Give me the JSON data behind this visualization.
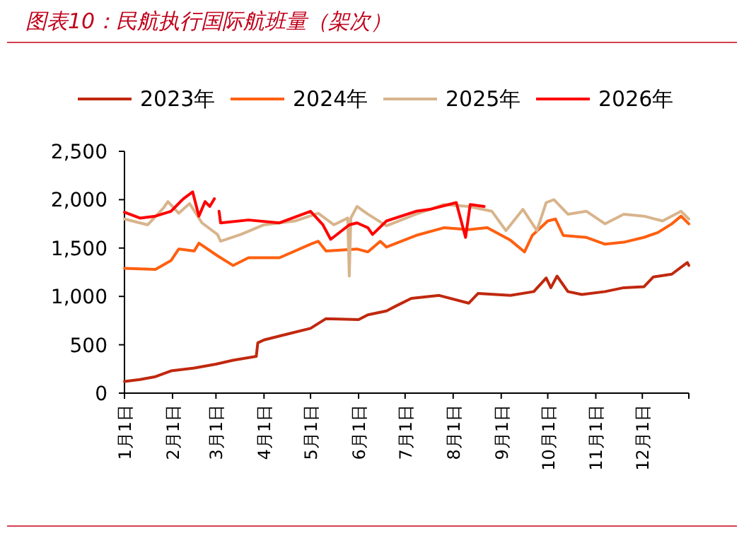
{
  "chart_data": {
    "type": "line",
    "title": "图表10：民航执行国际航班量（架次）",
    "legend": "top",
    "grid": false,
    "line_style": "solid",
    "marker": "none",
    "xlim": [
      "--01-01",
      "--12-31"
    ],
    "xticks": [
      {
        "value": "--01-01",
        "label": "1月1日"
      },
      {
        "value": "--02-01",
        "label": "2月1日"
      },
      {
        "value": "--03-01",
        "label": "3月1日"
      },
      {
        "value": "--04-01",
        "label": "4月1日"
      },
      {
        "value": "--05-01",
        "label": "5月1日"
      },
      {
        "value": "--06-01",
        "label": "6月1日"
      },
      {
        "value": "--07-01",
        "label": "7月1日"
      },
      {
        "value": "--08-01",
        "label": "8月1日"
      },
      {
        "value": "--09-01",
        "label": "9月1日"
      },
      {
        "value": "--10-01",
        "label": "10月1日"
      },
      {
        "value": "--11-01",
        "label": "11月1日"
      },
      {
        "value": "--12-01",
        "label": "12月1日"
      },
      {
        "value": "--12-31",
        "label": null
      }
    ],
    "ylim": [
      0,
      2500
    ],
    "yticks": [
      {
        "value": 0,
        "label": "0"
      },
      {
        "value": 500,
        "label": "500"
      },
      {
        "value": 1000,
        "label": "1,000"
      },
      {
        "value": 1500,
        "label": "1,500"
      },
      {
        "value": 2000,
        "label": "2,000"
      },
      {
        "value": 2500,
        "label": "2,500"
      }
    ],
    "series": [
      {
        "name": "2023年",
        "color": "#c0280e",
        "x": [
          "--01-01",
          "--01-11",
          "--01-21",
          "--01-31",
          "--02-15",
          "--03-01",
          "--03-12",
          "--03-27",
          "--03-28",
          "--04-01",
          "--04-16",
          "--05-01",
          "--05-11",
          "--06-01",
          "--06-07",
          "--06-19",
          "--06-25",
          "--07-05",
          "--07-23",
          "--08-11",
          "--08-17",
          "--09-07",
          "--09-22",
          "--09-30",
          "--10-03",
          "--10-07",
          "--10-14",
          "--10-23",
          "--11-07",
          "--11-19",
          "--12-02",
          "--12-08",
          "--12-20",
          "--12-30",
          "--12-31"
        ],
        "values": [
          120,
          140,
          170,
          230,
          260,
          300,
          340,
          380,
          520,
          550,
          610,
          670,
          770,
          760,
          810,
          850,
          900,
          980,
          1010,
          930,
          1030,
          1010,
          1050,
          1190,
          1090,
          1210,
          1050,
          1020,
          1050,
          1090,
          1100,
          1200,
          1230,
          1350,
          1320
        ]
      },
      {
        "name": "2024年",
        "color": "#ff5f0f",
        "x": [
          "--01-01",
          "--01-21",
          "--01-31",
          "--02-05",
          "--02-15",
          "--02-18",
          "--03-02",
          "--03-12",
          "--03-22",
          "--04-11",
          "--05-01",
          "--05-06",
          "--05-11",
          "--05-31",
          "--06-07",
          "--06-15",
          "--06-19",
          "--07-08",
          "--07-26",
          "--08-11",
          "--08-23",
          "--09-07",
          "--09-16",
          "--09-21",
          "--10-01",
          "--10-06",
          "--10-11",
          "--10-26",
          "--11-07",
          "--11-19",
          "--12-02",
          "--12-11",
          "--12-20",
          "--12-26",
          "--12-31"
        ],
        "values": [
          1290,
          1280,
          1370,
          1490,
          1470,
          1550,
          1420,
          1320,
          1400,
          1400,
          1540,
          1570,
          1470,
          1490,
          1460,
          1570,
          1510,
          1630,
          1710,
          1690,
          1710,
          1580,
          1460,
          1630,
          1780,
          1800,
          1630,
          1610,
          1540,
          1560,
          1610,
          1660,
          1750,
          1830,
          1750
        ]
      },
      {
        "name": "2025年",
        "color": "#d8b48c",
        "x": [
          "--01-01",
          "--01-16",
          "--01-26",
          "--01-29",
          "--02-05",
          "--02-12",
          "--02-20",
          "--03-02",
          "--03-04",
          "--03-17",
          "--04-01",
          "--04-21",
          "--05-06",
          "--05-16",
          "--05-25",
          "--05-26",
          "--05-27",
          "--05-31",
          "--06-07",
          "--06-19",
          "--07-08",
          "--07-26",
          "--08-11",
          "--08-26",
          "--09-04",
          "--09-15",
          "--09-24",
          "--09-30",
          "--10-05",
          "--10-14",
          "--10-26",
          "--11-07",
          "--11-19",
          "--12-02",
          "--12-14",
          "--12-26",
          "--12-31"
        ],
        "values": [
          1800,
          1740,
          1910,
          1980,
          1860,
          1960,
          1760,
          1640,
          1570,
          1640,
          1740,
          1780,
          1860,
          1740,
          1810,
          1210,
          1810,
          1930,
          1850,
          1730,
          1850,
          1950,
          1930,
          1880,
          1680,
          1900,
          1680,
          1970,
          2000,
          1850,
          1880,
          1750,
          1850,
          1830,
          1780,
          1880,
          1800
        ]
      },
      {
        "name": "2026年",
        "color": "#ff0000",
        "x": [
          "--01-01",
          "--01-11",
          "--01-21",
          "--01-31",
          "--02-08",
          "--02-14",
          "--02-18",
          "--02-22",
          "--02-25",
          "--02-28",
          "--03-01",
          "--03-03",
          "--03-04",
          "--03-22",
          "--04-11",
          "--05-01",
          "--05-09",
          "--05-14",
          "--05-26",
          "--05-31",
          "--06-07",
          "--06-10",
          "--06-19",
          "--07-08",
          "--07-17",
          "--08-03",
          "--08-09",
          "--08-12",
          "--08-21"
        ],
        "values": [
          1870,
          1810,
          1830,
          1880,
          2010,
          2080,
          1830,
          1980,
          1930,
          2010,
          null,
          1880,
          1760,
          1790,
          1760,
          1880,
          1740,
          1590,
          1740,
          1760,
          1710,
          1640,
          1780,
          1880,
          1900,
          1970,
          1610,
          1950,
          1930
        ]
      }
    ]
  }
}
